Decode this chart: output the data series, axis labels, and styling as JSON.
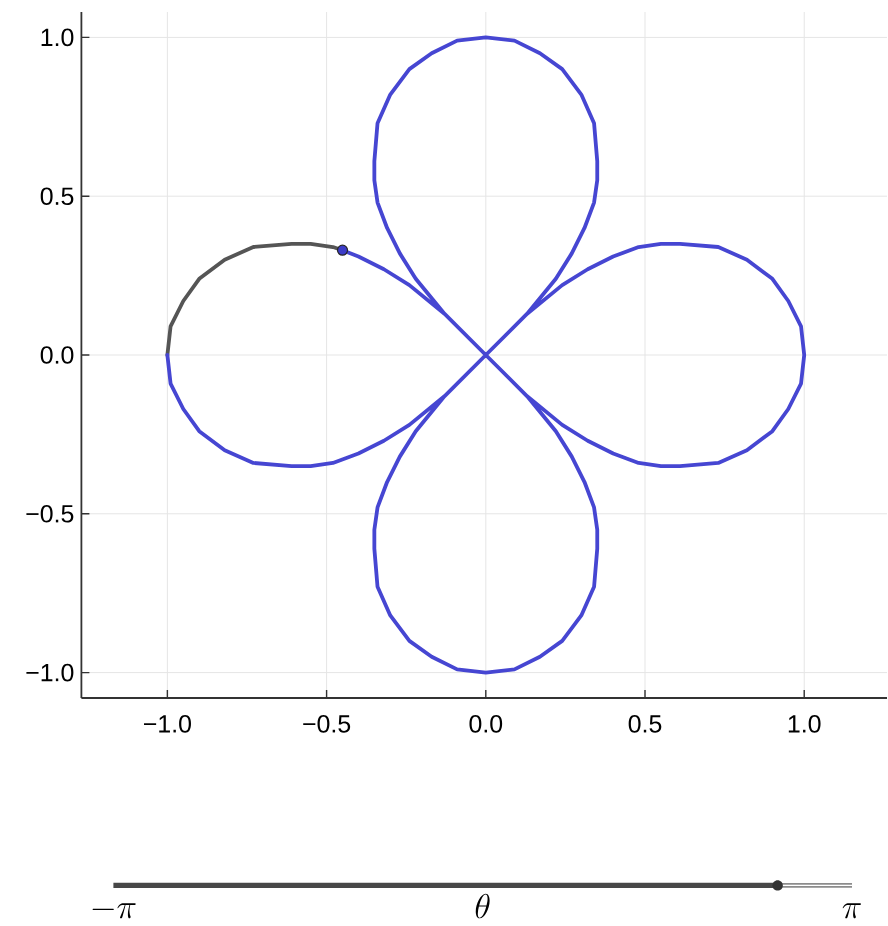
{
  "chart_data": {
    "type": "line",
    "xlim": [
      -1.27,
      1.26
    ],
    "ylim": [
      -1.08,
      1.08
    ],
    "xticks": [
      {
        "value": -1,
        "label": "−1.0"
      },
      {
        "value": -0.5,
        "label": "−0.5"
      },
      {
        "value": 0,
        "label": "0.0"
      },
      0.5,
      {
        "value": 1,
        "label": "1.0"
      }
    ],
    "yticks": [
      {
        "value": -1,
        "label": "−1.0"
      },
      {
        "value": -0.5,
        "label": "−0.5"
      },
      {
        "value": 0,
        "label": "0.0"
      },
      0.5,
      {
        "value": 1,
        "label": "1.0"
      }
    ],
    "grid": true,
    "annotations": [
      "-\\pi",
      "\\theta",
      "\\pi"
    ],
    "series": [
      {
        "type": "line",
        "color": "#555555",
        "x": [
          -0.45,
          -0.48,
          -0.55,
          -0.61,
          -0.73,
          -0.82,
          -0.9,
          -0.95,
          -0.99,
          -1
        ],
        "values": [
          0.33,
          0.34,
          0.35,
          0.35,
          0.34,
          0.3,
          0.24,
          0.17,
          0.09,
          0
        ]
      },
      {
        "color": "#4646d2",
        "x": [
          -1,
          -0.99,
          -0.95,
          -0.9,
          -0.82,
          -0.73,
          -0.61,
          -0.55,
          -0.48,
          -0.4,
          -0.32,
          -0.24,
          -0.13,
          0,
          -0.13,
          -0.22,
          -0.27,
          -0.31,
          -0.34,
          -0.35,
          -0.35,
          -0.34,
          -0.3,
          -0.24,
          -0.17,
          -0.09,
          0,
          0.09,
          0.17,
          0.24,
          0.3,
          0.34,
          0.35,
          0.35,
          0.34,
          0.31,
          0.27,
          0.22,
          0.13,
          0,
          0.13,
          0.24,
          0.32,
          0.4,
          0.48,
          0.55,
          0.61,
          0.73,
          0.82,
          0.9,
          0.95,
          0.99,
          1,
          0.99,
          0.95,
          0.9,
          0.82,
          0.73,
          0.61,
          0.55,
          0.48,
          0.4,
          0.32,
          0.24,
          0.13,
          0,
          0.13,
          0.22,
          0.27,
          0.31,
          0.34,
          0.35,
          0.35,
          0.34,
          0.3,
          0.24,
          0.17,
          0.09,
          0,
          -0.09,
          -0.17,
          -0.24,
          -0.3,
          -0.34,
          -0.35,
          -0.35,
          -0.34,
          -0.31,
          -0.27,
          -0.22,
          -0.13,
          0,
          -0.13,
          -0.24,
          -0.32,
          -0.4,
          -0.45
        ],
        "values": [
          0,
          -0.09,
          -0.17,
          -0.24,
          -0.3,
          -0.34,
          -0.35,
          -0.35,
          -0.34,
          -0.31,
          -0.27,
          -0.22,
          -0.13,
          0,
          -0.13,
          -0.24,
          -0.32,
          -0.4,
          -0.48,
          -0.55,
          -0.61,
          -0.73,
          -0.82,
          -0.9,
          -0.95,
          -0.99,
          -1,
          -0.99,
          -0.95,
          -0.9,
          -0.82,
          -0.73,
          -0.61,
          -0.55,
          -0.48,
          -0.4,
          -0.32,
          -0.24,
          -0.13,
          0,
          -0.13,
          -0.22,
          -0.27,
          -0.31,
          -0.34,
          -0.35,
          -0.35,
          -0.34,
          -0.3,
          -0.24,
          -0.17,
          -0.09,
          0,
          0.09,
          0.17,
          0.24,
          0.3,
          0.34,
          0.35,
          0.35,
          0.34,
          0.31,
          0.27,
          0.22,
          0.13,
          0,
          0.13,
          0.24,
          0.32,
          0.4,
          0.48,
          0.55,
          0.61,
          0.73,
          0.82,
          0.9,
          0.95,
          0.99,
          1,
          0.99,
          0.95,
          0.9,
          0.82,
          0.73,
          0.61,
          0.55,
          0.48,
          0.4,
          0.32,
          0.24,
          0.13,
          0,
          0.13,
          0.22,
          0.27,
          0.31,
          0.33
        ]
      },
      {
        "type": "scatter",
        "color": "#3c3cc8",
        "marker": "circle",
        "x": [
          -0.45
        ],
        "values": [
          0.33
        ]
      }
    ]
  }
}
